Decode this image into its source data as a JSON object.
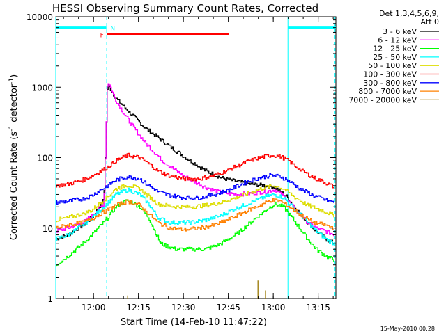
{
  "chart_data": {
    "type": "line",
    "title": "HESSI Observing Summary Count Rates, Corrected",
    "xlabel": "Start Time (14-Feb-10 11:47:22)",
    "ylabel": "Corrected Count Rate (s⁻¹ detector⁻¹)",
    "ylabel_base": "Corrected Count Rate (s",
    "ylabel_exp1": "-1",
    "ylabel_mid": " detector",
    "ylabel_exp2": "-1",
    "ylabel_end": ")",
    "yscale": "log",
    "ylim": [
      1,
      10000
    ],
    "x_unit": "minutes after 11:47:22",
    "xlim_minutes": [
      0,
      93.5
    ],
    "x_ticks": [
      {
        "minute": 12.6,
        "label": "12:00"
      },
      {
        "minute": 27.6,
        "label": "12:15"
      },
      {
        "minute": 42.6,
        "label": "12:30"
      },
      {
        "minute": 57.6,
        "label": "12:45"
      },
      {
        "minute": 72.6,
        "label": "13:00"
      },
      {
        "minute": 87.6,
        "label": "13:15"
      }
    ],
    "y_ticks": [
      {
        "value": 1,
        "label": "1"
      },
      {
        "value": 10,
        "label": "10"
      },
      {
        "value": 100,
        "label": "100"
      },
      {
        "value": 1000,
        "label": "1000"
      },
      {
        "value": 10000,
        "label": "10000"
      }
    ],
    "legend_position": "top-right, outside plot",
    "legend_header": [
      "Det 1,3,4,5,6,9,",
      "Att 0"
    ],
    "series": [
      {
        "name": "3 - 6 keV",
        "color": "#000000",
        "points": [
          [
            0,
            7
          ],
          [
            4,
            8
          ],
          [
            9,
            11
          ],
          [
            12,
            14
          ],
          [
            16,
            25
          ],
          [
            17.2,
            1100
          ],
          [
            20,
            700
          ],
          [
            25,
            420
          ],
          [
            30,
            260
          ],
          [
            35,
            180
          ],
          [
            40,
            125
          ],
          [
            45,
            90
          ],
          [
            50,
            65
          ],
          [
            55,
            52
          ],
          [
            60,
            46
          ],
          [
            65,
            42
          ],
          [
            70,
            40
          ],
          [
            73,
            38
          ],
          [
            77,
            28
          ],
          [
            80,
            19
          ],
          [
            84,
            12
          ],
          [
            87,
            9
          ],
          [
            90,
            7
          ],
          [
            93,
            6
          ]
        ]
      },
      {
        "name": "6 - 12 keV",
        "color": "#ff00ff",
        "points": [
          [
            0,
            9
          ],
          [
            4,
            10
          ],
          [
            9,
            12
          ],
          [
            12,
            15
          ],
          [
            16,
            22
          ],
          [
            17.2,
            1250
          ],
          [
            20,
            650
          ],
          [
            25,
            300
          ],
          [
            30,
            160
          ],
          [
            35,
            95
          ],
          [
            40,
            65
          ],
          [
            45,
            48
          ],
          [
            50,
            38
          ],
          [
            55,
            32
          ],
          [
            60,
            30
          ],
          [
            65,
            31
          ],
          [
            70,
            33
          ],
          [
            73,
            35
          ],
          [
            77,
            26
          ],
          [
            80,
            18
          ],
          [
            84,
            12
          ],
          [
            87,
            10
          ],
          [
            90,
            9
          ],
          [
            93,
            8
          ]
        ]
      },
      {
        "name": "12 - 25 keV",
        "color": "#00ff00",
        "points": [
          [
            0,
            3
          ],
          [
            4,
            4
          ],
          [
            9,
            6
          ],
          [
            12,
            8
          ],
          [
            16,
            12
          ],
          [
            20,
            20
          ],
          [
            24,
            25
          ],
          [
            28,
            20
          ],
          [
            31,
            14
          ],
          [
            33,
            9
          ],
          [
            35,
            6
          ],
          [
            40,
            5
          ],
          [
            50,
            5
          ],
          [
            55,
            6
          ],
          [
            60,
            8
          ],
          [
            65,
            12
          ],
          [
            70,
            18
          ],
          [
            73,
            22
          ],
          [
            76,
            20
          ],
          [
            80,
            12
          ],
          [
            84,
            7
          ],
          [
            87,
            5
          ],
          [
            90,
            4
          ],
          [
            93,
            3.5
          ]
        ]
      },
      {
        "name": "25 - 50 keV",
        "color": "#00ffff",
        "points": [
          [
            0,
            7
          ],
          [
            4,
            8
          ],
          [
            9,
            11
          ],
          [
            12,
            14
          ],
          [
            16,
            20
          ],
          [
            20,
            30
          ],
          [
            24,
            35
          ],
          [
            28,
            30
          ],
          [
            31,
            22
          ],
          [
            34,
            14
          ],
          [
            38,
            12
          ],
          [
            45,
            12
          ],
          [
            50,
            13
          ],
          [
            55,
            15
          ],
          [
            60,
            19
          ],
          [
            65,
            23
          ],
          [
            70,
            28
          ],
          [
            73,
            30
          ],
          [
            76,
            27
          ],
          [
            80,
            18
          ],
          [
            84,
            12
          ],
          [
            87,
            9
          ],
          [
            90,
            7
          ],
          [
            93,
            6
          ]
        ]
      },
      {
        "name": "50 - 100 keV",
        "color": "#dddd00",
        "points": [
          [
            0,
            13
          ],
          [
            4,
            14
          ],
          [
            9,
            16
          ],
          [
            12,
            18
          ],
          [
            16,
            25
          ],
          [
            20,
            36
          ],
          [
            24,
            41
          ],
          [
            28,
            36
          ],
          [
            31,
            28
          ],
          [
            34,
            22
          ],
          [
            40,
            20
          ],
          [
            45,
            20
          ],
          [
            50,
            21
          ],
          [
            55,
            23
          ],
          [
            60,
            27
          ],
          [
            65,
            32
          ],
          [
            70,
            38
          ],
          [
            73,
            40
          ],
          [
            76,
            36
          ],
          [
            80,
            27
          ],
          [
            84,
            21
          ],
          [
            87,
            19
          ],
          [
            90,
            17
          ],
          [
            93,
            15
          ]
        ]
      },
      {
        "name": "100 - 300 keV",
        "color": "#ff0000",
        "points": [
          [
            0,
            40
          ],
          [
            4,
            42
          ],
          [
            9,
            48
          ],
          [
            12,
            55
          ],
          [
            16,
            68
          ],
          [
            20,
            90
          ],
          [
            24,
            108
          ],
          [
            28,
            100
          ],
          [
            31,
            82
          ],
          [
            34,
            65
          ],
          [
            38,
            55
          ],
          [
            43,
            50
          ],
          [
            48,
            50
          ],
          [
            53,
            56
          ],
          [
            58,
            68
          ],
          [
            63,
            85
          ],
          [
            68,
            100
          ],
          [
            72,
            108
          ],
          [
            75,
            104
          ],
          [
            78,
            88
          ],
          [
            82,
            65
          ],
          [
            86,
            52
          ],
          [
            90,
            44
          ],
          [
            93,
            38
          ]
        ]
      },
      {
        "name": "300 - 800 keV",
        "color": "#0000ff",
        "points": [
          [
            0,
            23
          ],
          [
            4,
            24
          ],
          [
            9,
            26
          ],
          [
            12,
            29
          ],
          [
            16,
            37
          ],
          [
            20,
            48
          ],
          [
            24,
            54
          ],
          [
            28,
            50
          ],
          [
            31,
            40
          ],
          [
            34,
            33
          ],
          [
            38,
            29
          ],
          [
            43,
            27
          ],
          [
            48,
            27
          ],
          [
            53,
            30
          ],
          [
            58,
            35
          ],
          [
            63,
            44
          ],
          [
            68,
            52
          ],
          [
            72,
            56
          ],
          [
            75,
            54
          ],
          [
            78,
            46
          ],
          [
            82,
            35
          ],
          [
            86,
            29
          ],
          [
            90,
            25
          ],
          [
            93,
            23
          ]
        ]
      },
      {
        "name": "800 - 7000 keV",
        "color": "#ff8000",
        "points": [
          [
            0,
            10
          ],
          [
            4,
            11
          ],
          [
            9,
            12
          ],
          [
            12,
            13.5
          ],
          [
            16,
            17
          ],
          [
            20,
            21
          ],
          [
            24,
            24
          ],
          [
            28,
            21
          ],
          [
            31,
            16
          ],
          [
            34,
            12
          ],
          [
            38,
            10
          ],
          [
            43,
            9.5
          ],
          [
            48,
            10
          ],
          [
            53,
            11
          ],
          [
            58,
            13.5
          ],
          [
            63,
            17
          ],
          [
            68,
            21
          ],
          [
            72,
            25
          ],
          [
            75,
            24
          ],
          [
            78,
            20
          ],
          [
            82,
            15
          ],
          [
            86,
            12
          ],
          [
            90,
            11
          ],
          [
            93,
            10
          ]
        ]
      },
      {
        "name": "7000 - 20000 keV",
        "color": "#997700",
        "points": [
          [
            24,
            1.1
          ],
          [
            24.4,
            1
          ],
          [
            67.5,
            1.8
          ],
          [
            67.8,
            1
          ],
          [
            70,
            1.3
          ],
          [
            70.3,
            1
          ]
        ]
      }
    ],
    "annotations": [
      {
        "label": "F",
        "color": "#ff0000"
      },
      {
        "label": "N",
        "color": "#00ffff"
      }
    ],
    "flag_bars": {
      "night_cyan": [
        [
          0,
          16.9
        ],
        [
          77.5,
          93.5
        ]
      ],
      "flare_red": [
        17.2,
        57.8
      ],
      "night_level": 7000,
      "flare_level": 5600
    },
    "markers": {
      "cyan_dashed": [
        17.0,
        93.2
      ],
      "cyan_solid": [
        0,
        77.5
      ]
    }
  },
  "footer": {
    "date_stamp": "15-May-2010 00:28"
  }
}
